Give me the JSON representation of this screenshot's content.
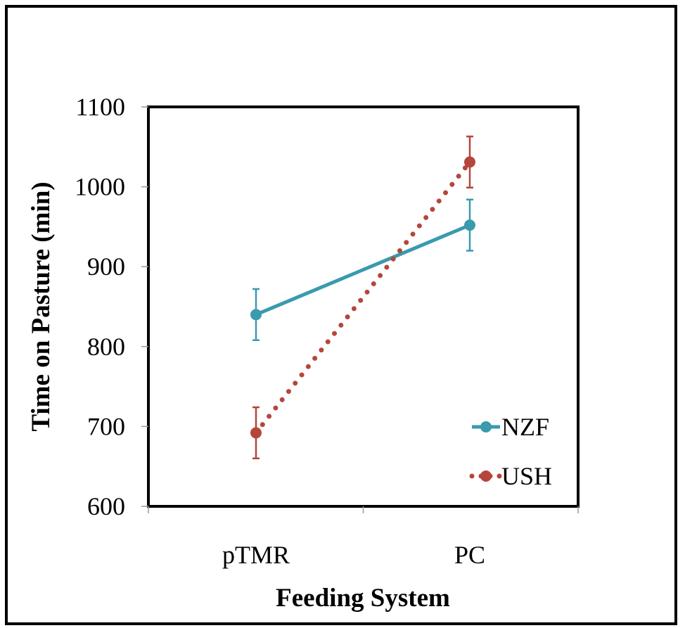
{
  "chart_data": {
    "type": "line",
    "xlabel": "Feeding System",
    "ylabel": "Time on Pasture (min)",
    "categories": [
      "pTMR",
      "PC"
    ],
    "ylim": [
      600,
      1100
    ],
    "yticks": [
      600,
      700,
      800,
      900,
      1000,
      1100
    ],
    "grid": false,
    "legend_position": "bottom-right",
    "series": [
      {
        "name": "NZF",
        "values": [
          840,
          952
        ],
        "error": [
          32,
          32
        ],
        "color": "#3A9AAE",
        "line_style": "solid"
      },
      {
        "name": "USH",
        "values": [
          692,
          1031
        ],
        "error": [
          32,
          32
        ],
        "color": "#B5463C",
        "line_style": "dotted"
      }
    ]
  }
}
